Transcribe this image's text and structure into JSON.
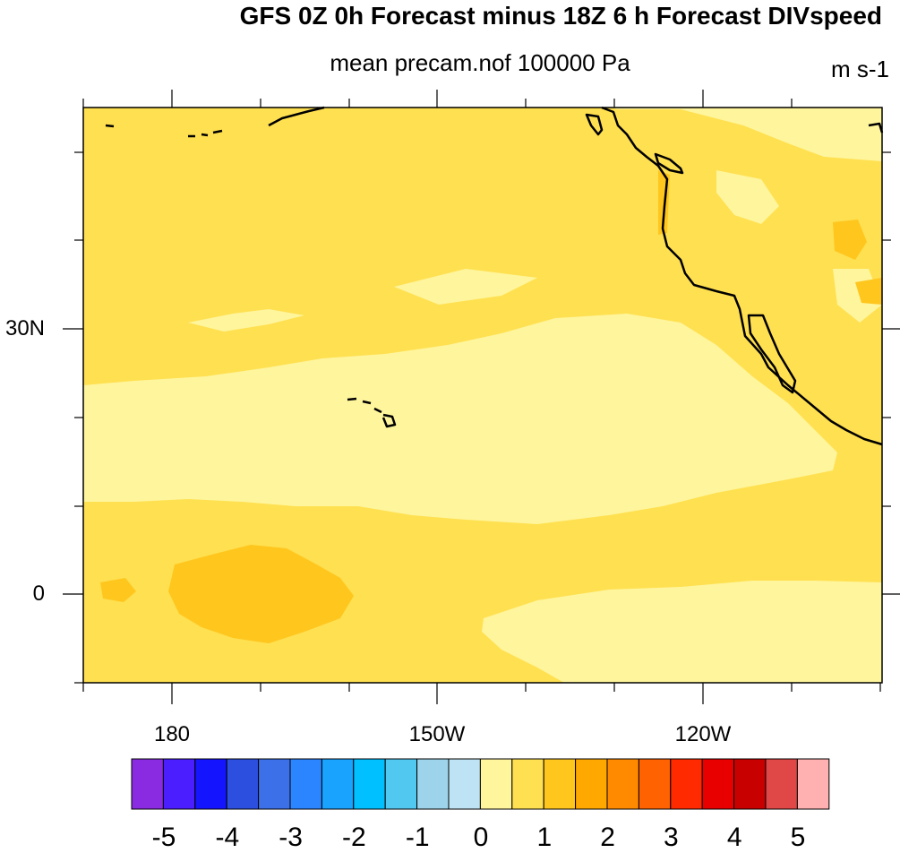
{
  "title": "GFS 0Z 0h Forecast minus 18Z 6 h Forecast DIVspeed",
  "subtitle": "mean precam.nof 100000 Pa",
  "units": "m s-1",
  "lat_labels": [
    "30N",
    "0"
  ],
  "lon_labels": [
    "180",
    "150W",
    "120W"
  ],
  "colorbar": {
    "colors": [
      "#8a2be2",
      "#4b1eff",
      "#1414ff",
      "#2c4fe0",
      "#3b70e8",
      "#2b85ff",
      "#1aa2ff",
      "#00c0ff",
      "#50c8f0",
      "#9dd4ec",
      "#bde3f4",
      "#fff59c",
      "#ffe050",
      "#ffc61e",
      "#ffa800",
      "#ff8a00",
      "#ff6200",
      "#ff2a00",
      "#e80000",
      "#c80000",
      "#e04848",
      "#ffb0b0"
    ],
    "labels": [
      "-5",
      "-4",
      "-3",
      "-2",
      "-1",
      "0",
      "1",
      "2",
      "3",
      "4",
      "5"
    ]
  },
  "map_colors": {
    "pale": "#fff59c",
    "base": "#ffe050",
    "orange": "#ffc61e",
    "coast": "#000000"
  }
}
